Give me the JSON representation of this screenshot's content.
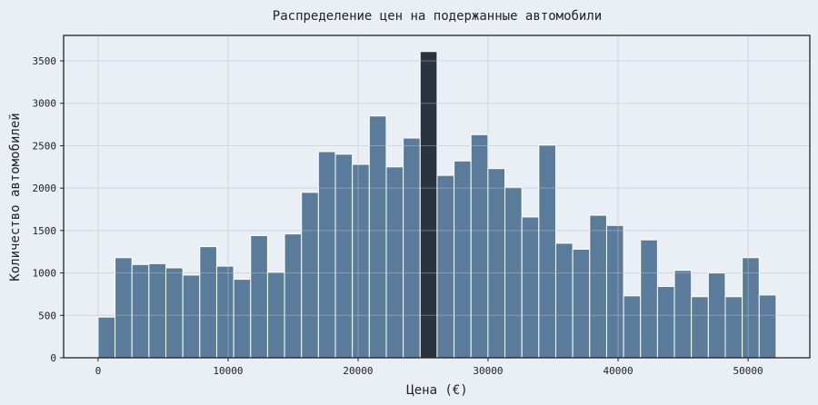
{
  "chart_data": {
    "type": "bar",
    "title": "Распределение цен на подержанные автомобили",
    "xlabel": "Цена (€)",
    "ylabel": "Количество автомобилей",
    "xlim": [
      -2650,
      54750
    ],
    "ylim": [
      0,
      3800
    ],
    "xticks": [
      0,
      10000,
      20000,
      30000,
      40000,
      50000
    ],
    "yticks": [
      0,
      500,
      1000,
      1500,
      2000,
      2500,
      3000,
      3500
    ],
    "grid": true,
    "bin_start": 0,
    "bin_width": 1304,
    "values": [
      480,
      1180,
      1100,
      1110,
      1060,
      975,
      1310,
      1080,
      925,
      1440,
      1010,
      1460,
      1950,
      2430,
      2400,
      2280,
      2850,
      2250,
      2590,
      3610,
      2150,
      2320,
      2630,
      2230,
      2010,
      1660,
      2510,
      1350,
      1280,
      1680,
      1560,
      730,
      1390,
      840,
      1030,
      720,
      1000,
      720,
      1180,
      740
    ],
    "highlight_index": 19,
    "colors": {
      "bar": "#5a7b99",
      "highlight": "#2a3440",
      "background": "#eaeef5",
      "grid": "#cfd3da",
      "edge": "#ffffff"
    }
  }
}
